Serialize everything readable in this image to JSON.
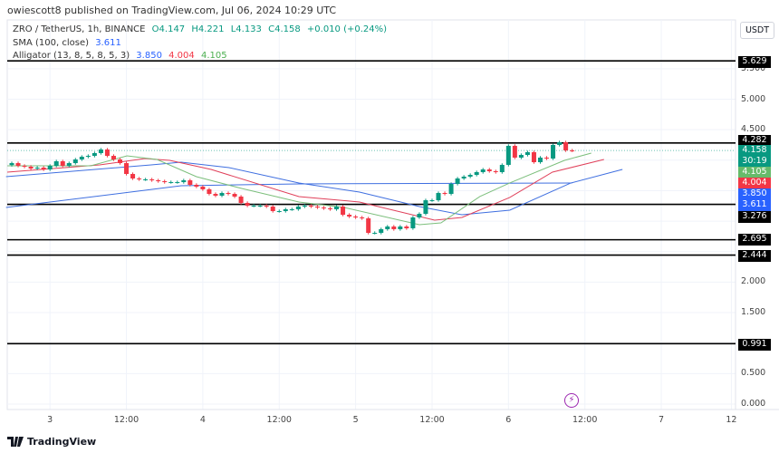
{
  "header": {
    "published": "owiescott8 published on TradingView.com, Jul 06, 2024 10:29 UTC",
    "currency_button": "USDT"
  },
  "legend": {
    "symbol": "ZRO / TetherUS, 1h, BINANCE",
    "open": "O4.147",
    "high": "H4.221",
    "low": "L4.133",
    "close": "C4.158",
    "change": "+0.010 (+0.24%)",
    "sma_label": "SMA (100, close)",
    "sma_value": "3.611",
    "alligator_label": "Alligator (13, 8, 5, 8, 5, 3)",
    "jaw": "3.850",
    "teeth": "4.004",
    "lips": "4.105"
  },
  "footer": {
    "logo_text": "TradingView"
  },
  "colors": {
    "up": "#089981",
    "down": "#f23645",
    "jaw": "#2962ff",
    "teeth": "#e91e63",
    "lips": "#66bb6a",
    "sma": "#2962ff",
    "level": "#000000"
  },
  "chart_data": {
    "type": "candlestick",
    "title": "ZRO / TetherUS, 1h, BINANCE",
    "ylim": [
      0,
      6.6
    ],
    "y_ticks": [
      "5.500",
      "5.000",
      "4.500",
      "2.000",
      "1.500",
      "0.500",
      "0.000"
    ],
    "x_ticks": [
      {
        "label": "3",
        "hour": 6
      },
      {
        "label": "12:00",
        "hour": 18
      },
      {
        "label": "4",
        "hour": 30
      },
      {
        "label": "12:00",
        "hour": 42
      },
      {
        "label": "5",
        "hour": 54
      },
      {
        "label": "12:00",
        "hour": 66
      },
      {
        "label": "6",
        "hour": 78
      },
      {
        "label": "12:00",
        "hour": 90
      },
      {
        "label": "7",
        "hour": 102
      },
      {
        "label": "12",
        "hour": 113
      }
    ],
    "closes": [
      3.952,
      3.908,
      3.893,
      3.863,
      3.878,
      3.848,
      3.908,
      3.982,
      3.908,
      3.952,
      4.012,
      4.056,
      4.071,
      4.116,
      4.175,
      4.071,
      4.012,
      3.952,
      3.774,
      3.7,
      3.685,
      3.685,
      3.67,
      3.655,
      3.64,
      3.64,
      3.64,
      3.67,
      3.596,
      3.566,
      3.522,
      3.447,
      3.418,
      3.462,
      3.447,
      3.403,
      3.299,
      3.254,
      3.254,
      3.254,
      3.239,
      3.165,
      3.165,
      3.195,
      3.195,
      3.239,
      3.254,
      3.239,
      3.224,
      3.21,
      3.195,
      3.239,
      3.105,
      3.076,
      3.061,
      3.046,
      2.808,
      2.808,
      2.868,
      2.912,
      2.868,
      2.912,
      2.883,
      3.061,
      3.12,
      3.343,
      3.343,
      3.462,
      3.447,
      3.611,
      3.7,
      3.73,
      3.759,
      3.804,
      3.848,
      3.819,
      3.804,
      3.923,
      4.235,
      4.042,
      4.086,
      4.131,
      3.967,
      4.042,
      4.027,
      4.25,
      4.294,
      4.16,
      4.158
    ],
    "first_open": 3.92,
    "lines": [
      {
        "name": "SMA 100",
        "color": "#3f6fe0",
        "points": [
          [
            -0.9,
            3.224
          ],
          [
            26.6,
            3.581
          ],
          [
            45.1,
            3.611
          ],
          [
            88,
            3.626
          ]
        ]
      },
      {
        "name": "Jaw",
        "color": "#3f6fe0",
        "points": [
          [
            -0.9,
            3.73
          ],
          [
            21.9,
            3.923
          ],
          [
            26.6,
            3.967
          ],
          [
            34.1,
            3.878
          ],
          [
            45.1,
            3.626
          ],
          [
            54.6,
            3.477
          ],
          [
            64,
            3.239
          ],
          [
            70.7,
            3.105
          ],
          [
            78.2,
            3.18
          ],
          [
            87.8,
            3.626
          ],
          [
            95.9,
            3.848
          ]
        ]
      },
      {
        "name": "Teeth",
        "color": "#e0405a",
        "points": [
          [
            -0.7,
            3.804
          ],
          [
            13.8,
            3.923
          ],
          [
            20.9,
            4.027
          ],
          [
            24.8,
            3.997
          ],
          [
            31.3,
            3.848
          ],
          [
            45.1,
            3.403
          ],
          [
            54.6,
            3.314
          ],
          [
            66.4,
            3.016
          ],
          [
            70.7,
            3.061
          ],
          [
            78.2,
            3.388
          ],
          [
            84.9,
            3.804
          ],
          [
            93,
            4.012
          ]
        ]
      },
      {
        "name": "Lips",
        "color": "#7cbf7c",
        "points": [
          [
            -0.7,
            3.908
          ],
          [
            12.4,
            3.908
          ],
          [
            18.1,
            4.071
          ],
          [
            22.8,
            4.012
          ],
          [
            29,
            3.73
          ],
          [
            36.1,
            3.536
          ],
          [
            45.1,
            3.314
          ],
          [
            52.2,
            3.224
          ],
          [
            64,
            2.942
          ],
          [
            67.4,
            2.972
          ],
          [
            73.5,
            3.403
          ],
          [
            78.2,
            3.626
          ],
          [
            86.8,
            3.997
          ],
          [
            91,
            4.116
          ]
        ]
      }
    ],
    "levels": [
      5.629,
      4.282,
      3.276,
      2.695,
      2.444,
      0.991
    ],
    "current_price": 4.158,
    "price_badges": [
      {
        "value": "5.629",
        "kind": "level"
      },
      {
        "value": "4.282",
        "kind": "level"
      },
      {
        "value": "4.158",
        "kind": "price"
      },
      {
        "value": "30:19",
        "kind": "countdown"
      },
      {
        "value": "4.105",
        "kind": "lips"
      },
      {
        "value": "4.004",
        "kind": "teeth"
      },
      {
        "value": "3.850",
        "kind": "jaw"
      },
      {
        "value": "3.611",
        "kind": "sma"
      },
      {
        "value": "3.276",
        "kind": "level"
      },
      {
        "value": "2.695",
        "kind": "level"
      },
      {
        "value": "2.444",
        "kind": "level"
      },
      {
        "value": "0.991",
        "kind": "level"
      }
    ]
  }
}
